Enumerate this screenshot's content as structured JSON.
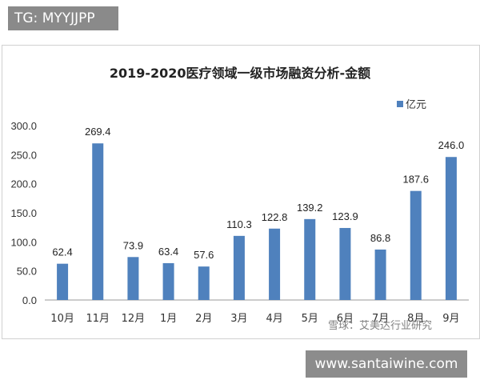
{
  "badges": {
    "top_left": "TG: MYYJJPP",
    "bottom_right": "www.santaiwine.com"
  },
  "watermark": "雪球：艾美达行业研究",
  "chart_data": {
    "type": "bar",
    "title": "2019-2020医疗领域一级市场融资分析-金额",
    "categories": [
      "10月",
      "11月",
      "12月",
      "1月",
      "2月",
      "3月",
      "4月",
      "5月",
      "6月",
      "7月",
      "8月",
      "9月"
    ],
    "series": [
      {
        "name": "亿元",
        "color": "#4f81bd",
        "values": [
          62.4,
          269.4,
          73.9,
          63.4,
          57.6,
          110.3,
          122.8,
          139.2,
          123.9,
          86.8,
          187.6,
          246.0
        ]
      }
    ],
    "value_labels": [
      "62.4",
      "269.4",
      "73.9",
      "63.4",
      "57.6",
      "110.3",
      "122.8",
      "139.2",
      "123.9",
      "86.8",
      "187.6",
      "246.0"
    ],
    "yticks": [
      "0.0",
      "50.0",
      "100.0",
      "150.0",
      "200.0",
      "250.0",
      "300.0"
    ],
    "ylim": [
      0,
      300
    ],
    "grid": false,
    "legend_position": "top-right"
  }
}
